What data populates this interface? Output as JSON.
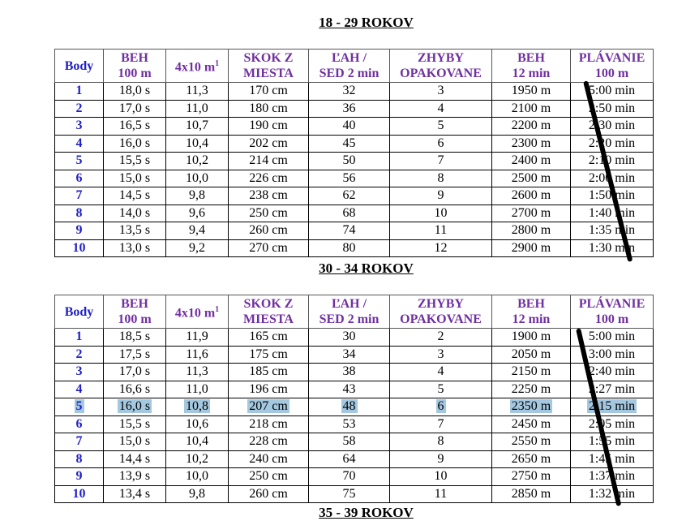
{
  "colors": {
    "header": "#7030a0",
    "points": "#1f1fc8",
    "highlight": "#a4c8e0",
    "pen_stroke": "#000000"
  },
  "headers": [
    {
      "l1": "Body",
      "l2": ""
    },
    {
      "l1": "BEH",
      "l2": "100 m"
    },
    {
      "l1": "4x10 m",
      "sup": "1"
    },
    {
      "l1": "SKOK Z",
      "l2": "MIESTA"
    },
    {
      "l1": "ĽAH /",
      "l2": "SED 2 min"
    },
    {
      "l1": "ZHYBY",
      "l2": "OPAKOVANE"
    },
    {
      "l1": "BEH",
      "l2": "12 min"
    },
    {
      "l1": "PLÁVANIE",
      "l2": "100 m"
    }
  ],
  "sections": [
    {
      "title": "18 - 29 ROKOV",
      "highlighted_row": null,
      "rows": [
        [
          "1",
          "18,0 s",
          "11,3",
          "170 cm",
          "32",
          "3",
          "1950 m",
          "5:00 min"
        ],
        [
          "2",
          "17,0 s",
          "11,0",
          "180 cm",
          "36",
          "4",
          "2100 m",
          "2:50 min"
        ],
        [
          "3",
          "16,5 s",
          "10,7",
          "190 cm",
          "40",
          "5",
          "2200 m",
          "2:30 min"
        ],
        [
          "4",
          "16,0 s",
          "10,4",
          "202 cm",
          "45",
          "6",
          "2300 m",
          "2:20 min"
        ],
        [
          "5",
          "15,5 s",
          "10,2",
          "214 cm",
          "50",
          "7",
          "2400 m",
          "2:10 min"
        ],
        [
          "6",
          "15,0 s",
          "10,0",
          "226 cm",
          "56",
          "8",
          "2500 m",
          "2:00 min"
        ],
        [
          "7",
          "14,5 s",
          "9,8",
          "238 cm",
          "62",
          "9",
          "2600 m",
          "1:50 min"
        ],
        [
          "8",
          "14,0 s",
          "9,6",
          "250 cm",
          "68",
          "10",
          "2700 m",
          "1:40 min"
        ],
        [
          "9",
          "13,5 s",
          "9,4",
          "260 cm",
          "74",
          "11",
          "2800 m",
          "1:35 min"
        ],
        [
          "10",
          "13,0 s",
          "9,2",
          "270 cm",
          "80",
          "12",
          "2900 m",
          "1:30 min"
        ]
      ]
    },
    {
      "title": "30 - 34 ROKOV",
      "highlighted_row": 4,
      "rows": [
        [
          "1",
          "18,5 s",
          "11,9",
          "165 cm",
          "30",
          "2",
          "1900 m",
          "5:00 min"
        ],
        [
          "2",
          "17,5 s",
          "11,6",
          "175 cm",
          "34",
          "3",
          "2050 m",
          "3:00 min"
        ],
        [
          "3",
          "17,0 s",
          "11,3",
          "185 cm",
          "38",
          "4",
          "2150 m",
          "2:40 min"
        ],
        [
          "4",
          "16,6 s",
          "11,0",
          "196 cm",
          "43",
          "5",
          "2250 m",
          "2:27 min"
        ],
        [
          "5",
          "16,0 s",
          "10,8",
          "207 cm",
          "48",
          "6",
          "2350 m",
          "2:15 min"
        ],
        [
          "6",
          "15,5 s",
          "10,6",
          "218 cm",
          "53",
          "7",
          "2450 m",
          "2:05 min"
        ],
        [
          "7",
          "15,0 s",
          "10,4",
          "228 cm",
          "58",
          "8",
          "2550 m",
          "1:55 min"
        ],
        [
          "8",
          "14,4 s",
          "10,2",
          "240 cm",
          "64",
          "9",
          "2650 m",
          "1:45 min"
        ],
        [
          "9",
          "13,9 s",
          "10,0",
          "250 cm",
          "70",
          "10",
          "2750 m",
          "1:37 min"
        ],
        [
          "10",
          "13,4 s",
          "9,8",
          "260 cm",
          "75",
          "11",
          "2850 m",
          "1:32 min"
        ]
      ]
    },
    {
      "title": "35 - 39 ROKOV"
    }
  ]
}
